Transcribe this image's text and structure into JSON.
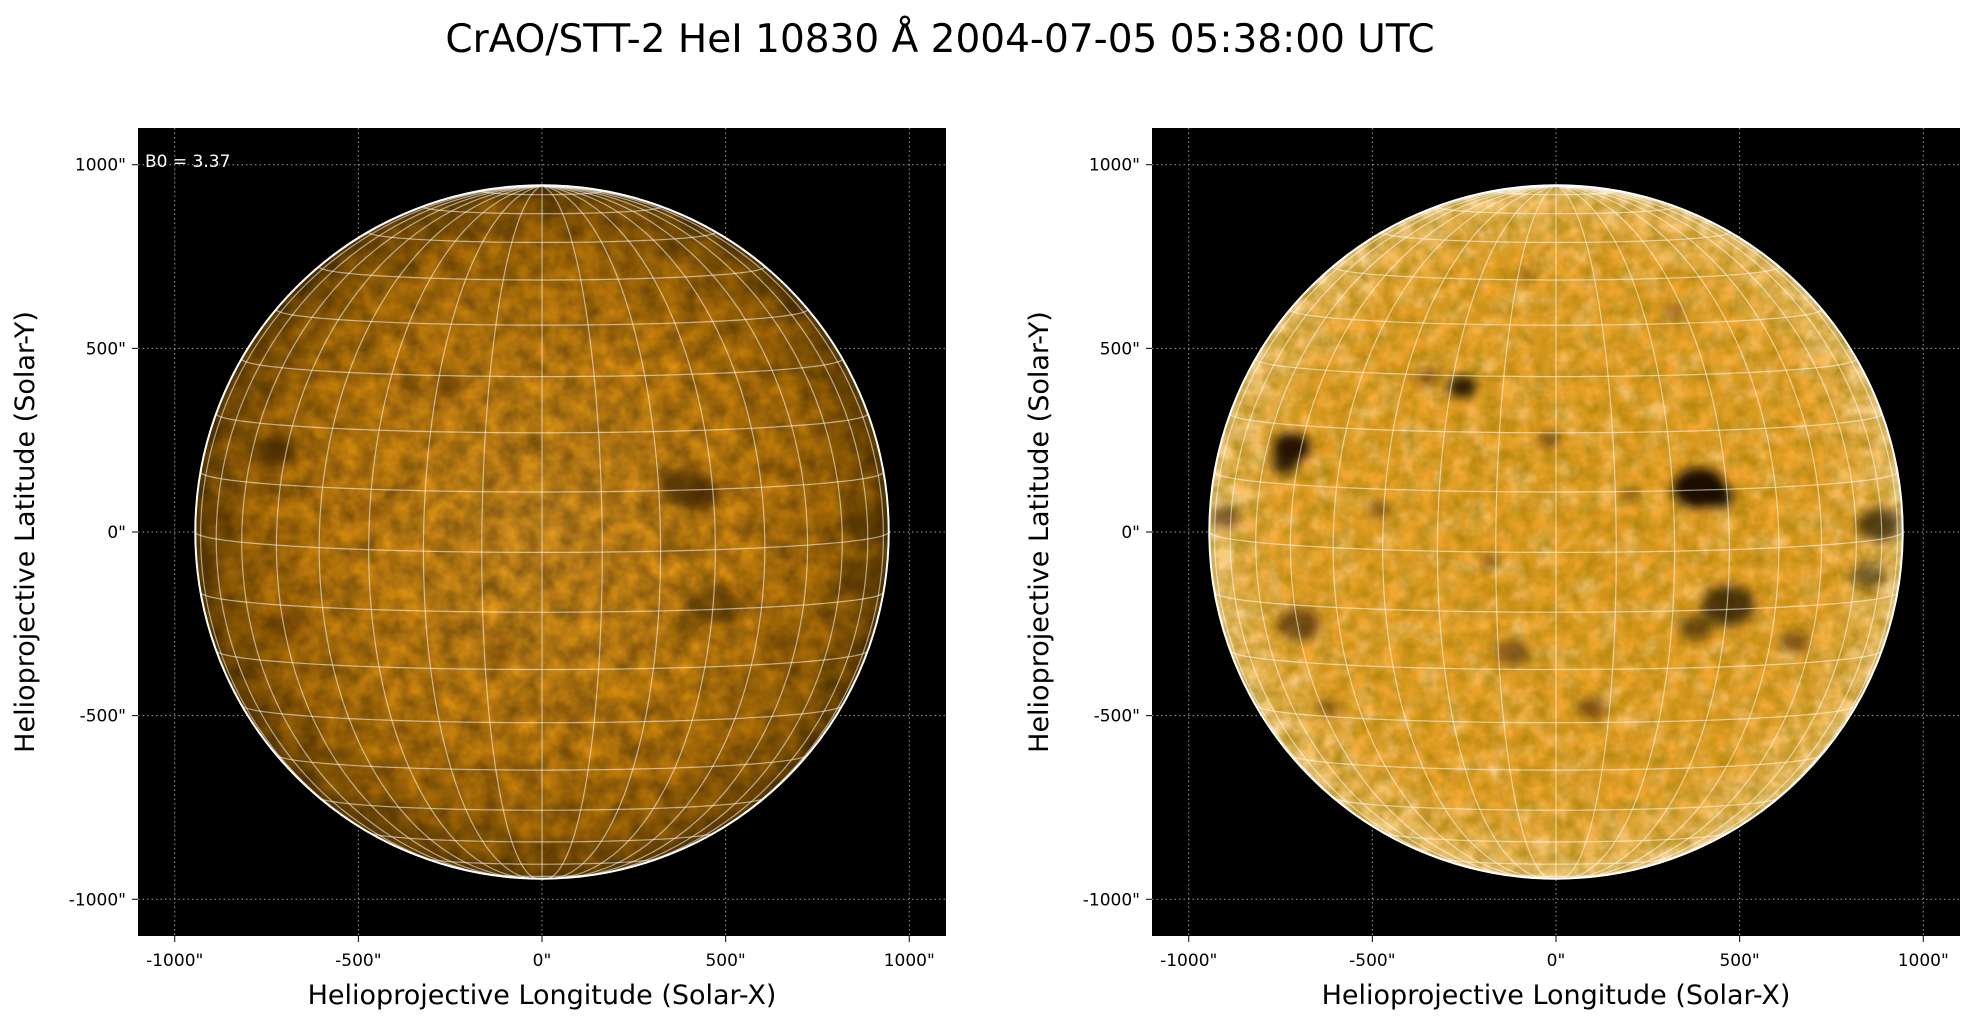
{
  "figure": {
    "title": "CrAO/STT-2 HeI 10830 Å 2004-07-05 05:38:00 UTC"
  },
  "colors": {
    "background": "#000000",
    "disk_dim": "#b87606",
    "disk_bright": "#f0a21a",
    "limb": "#ffffff",
    "grid": "#ffffff",
    "ticks": "#000000"
  },
  "panels": [
    {
      "id": "left",
      "annotation": "B0 = 3.37",
      "xlabel": "Helioprojective Longitude (Solar-X)",
      "ylabel": "Helioprojective Latitude (Solar-Y)",
      "xticks": [
        "-1000\"",
        "-500\"",
        "0\"",
        "500\"",
        "1000\""
      ],
      "yticks": [
        "1000\"",
        "500\"",
        "0\"",
        "-500\"",
        "-1000\""
      ],
      "style": "limb-darkened"
    },
    {
      "id": "right",
      "annotation": "",
      "xlabel": "Helioprojective Longitude (Solar-X)",
      "ylabel": "Helioprojective Latitude (Solar-Y)",
      "xticks": [
        "-1000\"",
        "-500\"",
        "0\"",
        "500\"",
        "1000\""
      ],
      "yticks": [
        "1000\"",
        "500\"",
        "0\"",
        "-500\"",
        "-1000\""
      ],
      "style": "enhanced-contrast"
    }
  ],
  "map": {
    "x_range_arcsec": [
      -1100,
      1100
    ],
    "y_range_arcsec": [
      -1100,
      1100
    ],
    "tick_values_arcsec": [
      -1000,
      -500,
      0,
      500,
      1000
    ],
    "solar_radius_arcsec": 944,
    "b0_deg": 3.37,
    "grid_spacing_deg": 10,
    "grid_style": "dotted"
  }
}
